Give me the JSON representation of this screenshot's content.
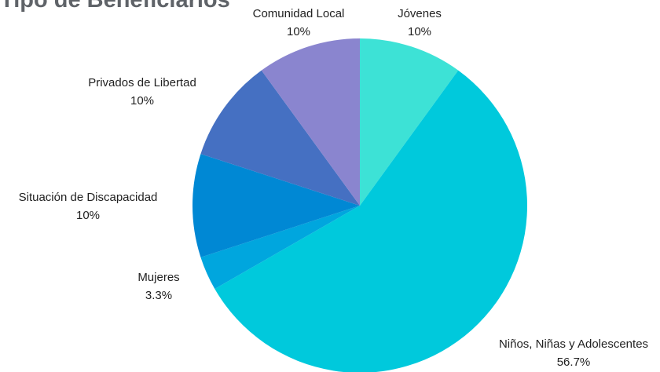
{
  "chart_data": {
    "type": "pie",
    "title": "Tipo de Beneficiarios",
    "slices": [
      {
        "label": "Jóvenes",
        "percent_label": "10%",
        "value": 10,
        "color": "#3de2d6"
      },
      {
        "label": "Niños, Niñas y Adolescentes",
        "percent_label": "56.7%",
        "value": 56.7,
        "color": "#00c9dc"
      },
      {
        "label": "Mujeres",
        "percent_label": "3.3%",
        "value": 3.3,
        "color": "#00a6de"
      },
      {
        "label": "Situación de Discapacidad",
        "percent_label": "10%",
        "value": 10,
        "color": "#0088d4"
      },
      {
        "label": "Privados de Libertad",
        "percent_label": "10%",
        "value": 10,
        "color": "#4570c2"
      },
      {
        "label": "Comunidad Local",
        "percent_label": "10%",
        "value": 10,
        "color": "#8a85cf"
      }
    ],
    "start_angle": "top",
    "direction": "clockwise",
    "legend": "none"
  }
}
